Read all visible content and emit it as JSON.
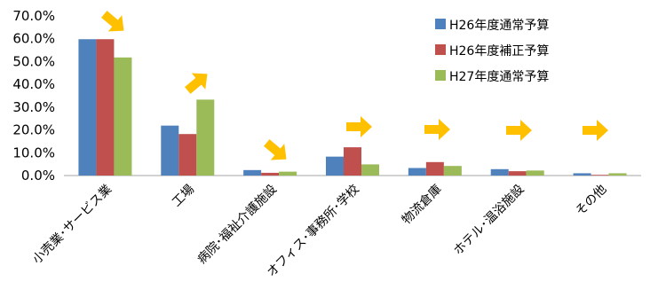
{
  "chart_data": {
    "type": "bar",
    "categories": [
      "小売業･サービス業",
      "工場",
      "病院･福祉介護施設",
      "オフィス･事務所･学校",
      "物流倉庫",
      "ホテル･温浴施設",
      "その他"
    ],
    "series": [
      {
        "name": "H26年度通常予算",
        "color": "#4f81bd",
        "values": [
          59.8,
          21.9,
          2.4,
          8.3,
          3.3,
          2.8,
          1.0
        ]
      },
      {
        "name": "H26年度補正予算",
        "color": "#c0504d",
        "values": [
          59.8,
          18.2,
          1.2,
          12.4,
          5.9,
          1.9,
          0.3
        ]
      },
      {
        "name": "H27年度通常予算",
        "color": "#9bbb59",
        "values": [
          51.8,
          33.3,
          1.7,
          4.9,
          4.2,
          2.2,
          1.0
        ]
      }
    ],
    "y_tick_labels": [
      "0.0%",
      "10.0%",
      "20.0%",
      "30.0%",
      "40.0%",
      "50.0%",
      "60.0%",
      "70.0%"
    ],
    "ylim": [
      0,
      70
    ],
    "title": "",
    "xlabel": "",
    "ylabel": "",
    "grid": false,
    "legend_position": "top-right",
    "annotations": {
      "type": "arrow",
      "color": "#ffc000",
      "directions": [
        "down-right",
        "up-right",
        "down-right",
        "right",
        "right",
        "right",
        "right"
      ]
    }
  }
}
